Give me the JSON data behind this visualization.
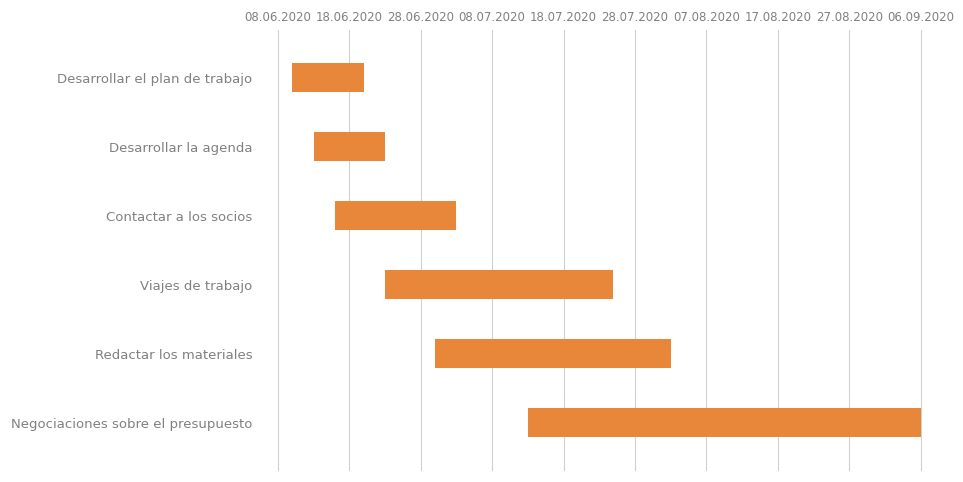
{
  "tasks": [
    "Desarrollar el plan de trabajo",
    "Desarrollar la agenda",
    "Contactar a los socios",
    "Viajes de trabajo",
    "Redactar los materiales",
    "Negociaciones sobre el presupuesto"
  ],
  "start_days": [
    2,
    5,
    8,
    15,
    22,
    35
  ],
  "durations": [
    10,
    10,
    17,
    32,
    33,
    55
  ],
  "bar_color": "#E8873A",
  "bar_height": 0.42,
  "background_color": "#FFFFFF",
  "grid_color": "#D0D0D0",
  "label_color": "#808080",
  "tick_dates": [
    "08.06.2020",
    "18.06.2020",
    "28.06.2020",
    "08.07.2020",
    "18.07.2020",
    "28.07.2020",
    "07.08.2020",
    "17.08.2020",
    "27.08.2020",
    "06.09.2020"
  ],
  "tick_days": [
    0,
    10,
    20,
    30,
    40,
    50,
    60,
    70,
    80,
    90
  ],
  "xlim": [
    -2,
    93
  ],
  "ylim_bottom": 5.7,
  "ylim_top": -0.7,
  "figsize": [
    9.63,
    4.82
  ],
  "dpi": 100,
  "tick_fontsize": 8.5,
  "label_fontsize": 9.5
}
